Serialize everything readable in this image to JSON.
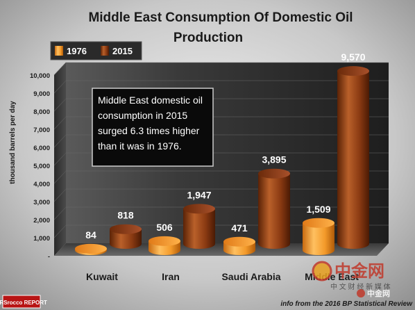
{
  "chart_data": {
    "type": "bar",
    "title_line1": "Middle East Consumption Of Domestic Oil",
    "title_line2": "Production",
    "ylabel": "thousand barrels per day",
    "ylim": [
      0,
      10000
    ],
    "y_ticks": [
      "-",
      "1,000",
      "2,000",
      "3,000",
      "4,000",
      "5,000",
      "6,000",
      "7,000",
      "8,000",
      "9,000",
      "10,000"
    ],
    "categories": [
      "Kuwait",
      "Iran",
      "Saudi Arabia",
      "Middle East"
    ],
    "series": [
      {
        "name": "1976",
        "values": [
          84,
          506,
          471,
          1509
        ],
        "labels": [
          "84",
          "506",
          "471",
          "1,509"
        ],
        "color": "#f39a2a"
      },
      {
        "name": "2015",
        "values": [
          818,
          1947,
          3895,
          9570
        ],
        "labels": [
          "818",
          "1,947",
          "3,895",
          "9,570"
        ],
        "color": "#8a3a12"
      }
    ],
    "annotation": [
      "Middle East domestic oil",
      "consumption in 2015",
      "surged 6.3 times higher",
      "than it was in 1976."
    ],
    "source": "info from the 2016 BP Statistical Review",
    "logo_text": "SRSrocco REPORT",
    "watermark": [
      "中金网",
      "中 文 财 经 新 媒 体",
      "中金网"
    ]
  }
}
